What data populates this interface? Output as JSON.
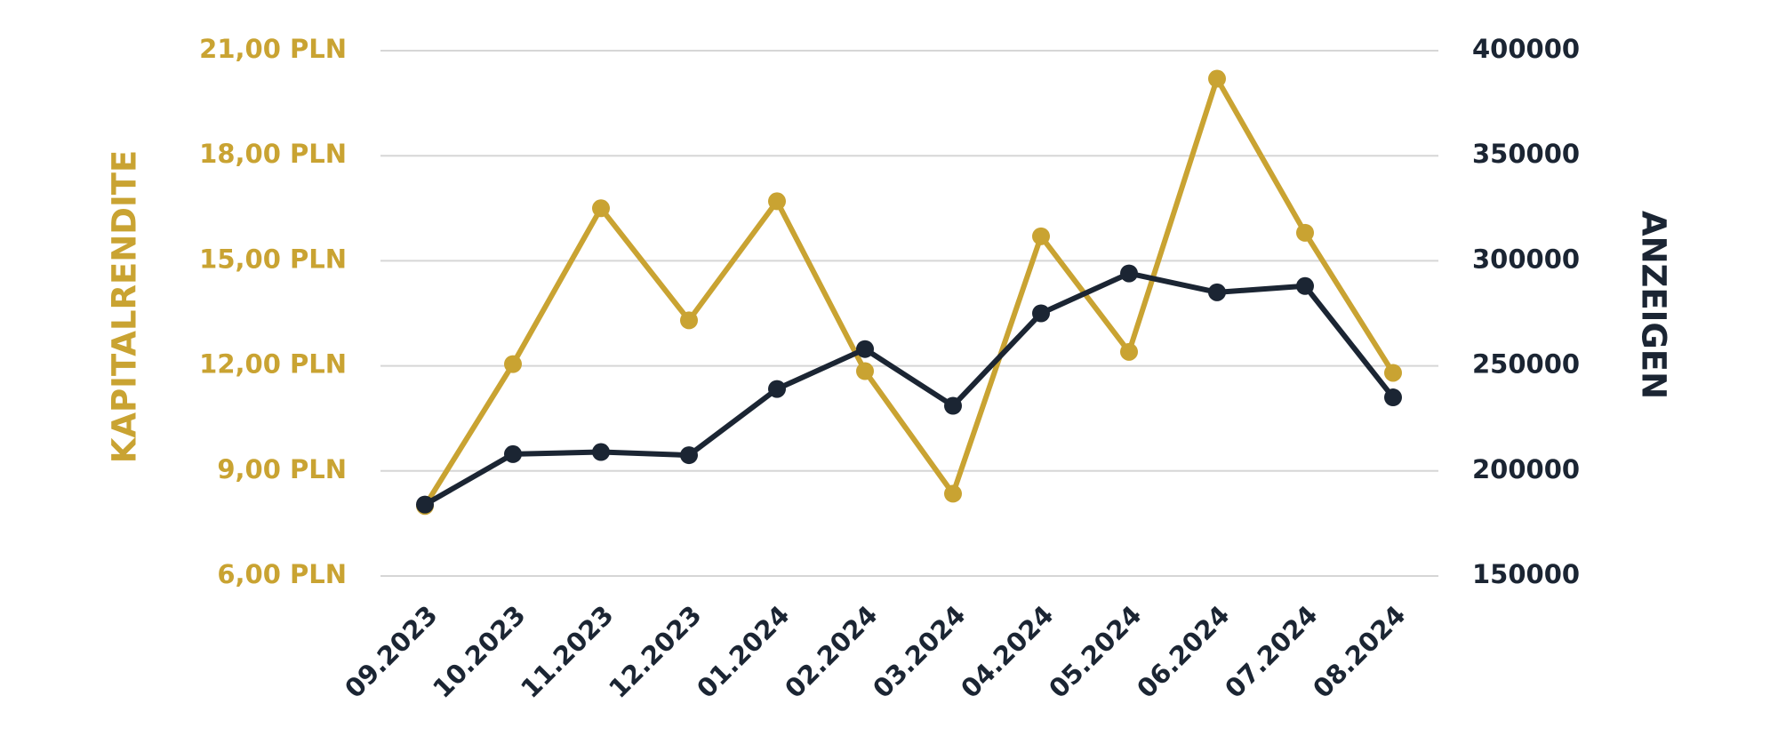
{
  "chart_data": {
    "type": "line",
    "categories": [
      "09.2023",
      "10.2023",
      "11.2023",
      "12.2023",
      "01.2024",
      "02.2024",
      "03.2024",
      "04.2024",
      "05.2024",
      "06.2024",
      "07.2024",
      "08.2024"
    ],
    "y_left": {
      "label": "KAPITALRENDITE",
      "range": [
        6,
        21
      ],
      "ticks": [
        "6,00 PLN",
        "9,00 PLN",
        "12,00 PLN",
        "15,00 PLN",
        "18,00 PLN",
        "21,00 PLN"
      ],
      "color": "#c9a332"
    },
    "y_right": {
      "label": "ANZEIGEN",
      "range": [
        150000,
        400000
      ],
      "ticks": [
        "150000",
        "200000",
        "250000",
        "300000",
        "350000",
        "400000"
      ],
      "color": "#1b2533"
    },
    "series": [
      {
        "axis": "left",
        "color": "#c9a332",
        "values": [
          8.0,
          12.05,
          16.5,
          13.3,
          16.7,
          11.85,
          8.35,
          15.7,
          12.4,
          20.2,
          15.8,
          11.8
        ]
      },
      {
        "axis": "right",
        "color": "#1b2533",
        "values": [
          184000,
          208000,
          209000,
          207500,
          239000,
          258000,
          231000,
          275000,
          294000,
          285000,
          288000,
          235000
        ]
      }
    ],
    "grid": true,
    "legend": "none"
  }
}
